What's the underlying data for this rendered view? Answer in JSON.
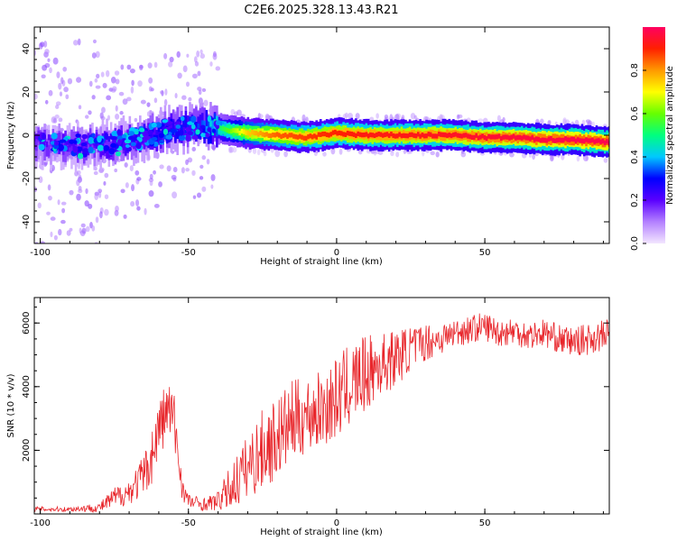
{
  "chart_data": [
    {
      "type": "heatmap",
      "title": "C2E6.2025.328.13.43.R21",
      "xlabel": "Height of straight line (km)",
      "ylabel": "Frequency (Hz)",
      "xlim": [
        -102,
        92
      ],
      "ylim": [
        -50,
        50
      ],
      "xticks": [
        -100,
        -50,
        0,
        50
      ],
      "yticks": [
        -40,
        -20,
        0,
        20,
        40
      ],
      "colorbar": {
        "label": "Normalized spectral amplitude",
        "range": [
          0,
          1
        ],
        "ticks": [
          "0.0",
          "0.2",
          "0.4",
          "0.6",
          "0.8"
        ],
        "colors": [
          "#f3e6ff",
          "#b380ff",
          "#5a00ff",
          "#0000ff",
          "#00c8ff",
          "#00ff7f",
          "#66ff00",
          "#ffff00",
          "#ff9900",
          "#ff2000",
          "#ff0060"
        ]
      },
      "ridge": [
        {
          "x": -95,
          "f": -4,
          "amp": 0.2
        },
        {
          "x": -85,
          "f": -5,
          "amp": 0.22
        },
        {
          "x": -75,
          "f": -4,
          "amp": 0.25
        },
        {
          "x": -65,
          "f": -1,
          "amp": 0.28
        },
        {
          "x": -55,
          "f": 3,
          "amp": 0.3
        },
        {
          "x": -45,
          "f": 4,
          "amp": 0.34
        },
        {
          "x": -40,
          "f": 3,
          "amp": 0.5
        },
        {
          "x": -30,
          "f": 1,
          "amp": 0.75
        },
        {
          "x": -20,
          "f": 0,
          "amp": 0.85
        },
        {
          "x": -10,
          "f": -1,
          "amp": 0.88
        },
        {
          "x": 0,
          "f": 1,
          "amp": 0.9
        },
        {
          "x": 10,
          "f": 0,
          "amp": 0.92
        },
        {
          "x": 20,
          "f": 0,
          "amp": 0.92
        },
        {
          "x": 30,
          "f": 0,
          "amp": 0.93
        },
        {
          "x": 40,
          "f": 0,
          "amp": 0.94
        },
        {
          "x": 50,
          "f": -1,
          "amp": 0.95
        },
        {
          "x": 60,
          "f": -1,
          "amp": 0.96
        },
        {
          "x": 70,
          "f": -2,
          "amp": 0.97
        },
        {
          "x": 80,
          "f": -2,
          "amp": 0.98
        },
        {
          "x": 90,
          "f": -3,
          "amp": 0.98
        }
      ]
    },
    {
      "type": "line",
      "xlabel": "Height of straight line (km)",
      "ylabel": "SNR (10 * v/v)",
      "xlim": [
        -102,
        92
      ],
      "ylim": [
        0,
        6800
      ],
      "xticks": [
        -100,
        -50,
        0,
        50
      ],
      "yticks": [
        2000,
        4000,
        6000
      ],
      "line_color": "#e8262b",
      "series": [
        {
          "name": "SNR",
          "x": [
            -100,
            -90,
            -80,
            -75,
            -70,
            -65,
            -62,
            -60,
            -57,
            -55,
            -52,
            -50,
            -45,
            -40,
            -35,
            -30,
            -25,
            -20,
            -15,
            -10,
            -5,
            0,
            5,
            10,
            15,
            20,
            25,
            30,
            35,
            40,
            45,
            50,
            55,
            60,
            65,
            70,
            75,
            80,
            85,
            90,
            92
          ],
          "y": [
            150,
            150,
            200,
            500,
            700,
            1200,
            1900,
            2700,
            3300,
            3000,
            800,
            400,
            300,
            400,
            900,
            1500,
            2000,
            2400,
            2900,
            3100,
            3300,
            3600,
            4100,
            4400,
            4700,
            4900,
            5200,
            5400,
            5500,
            5700,
            5800,
            5900,
            5700,
            5750,
            5600,
            5700,
            5500,
            5400,
            5500,
            5600,
            5650
          ],
          "noise": [
            80,
            80,
            150,
            350,
            400,
            700,
            900,
            1000,
            1000,
            1000,
            400,
            250,
            200,
            300,
            800,
            1000,
            1300,
            1300,
            1300,
            1200,
            1200,
            1300,
            1300,
            1200,
            1000,
            900,
            700,
            600,
            500,
            450,
            450,
            450,
            450,
            450,
            450,
            450,
            450,
            450,
            500,
            500,
            500
          ]
        }
      ]
    }
  ]
}
